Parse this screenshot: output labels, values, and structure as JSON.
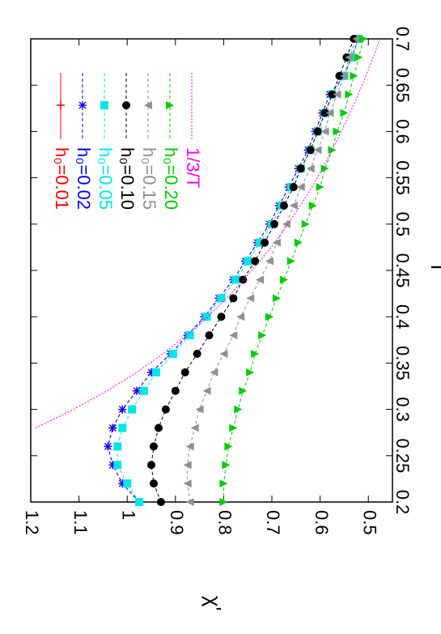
{
  "chart_data": {
    "type": "line",
    "x_label": "T",
    "y_label": "χ'",
    "x": [
      0.2,
      0.22,
      0.24,
      0.26,
      0.28,
      0.3,
      0.32,
      0.34,
      0.36,
      0.38,
      0.4,
      0.42,
      0.44,
      0.46,
      0.48,
      0.5,
      0.52,
      0.54,
      0.56,
      0.58,
      0.6,
      0.62,
      0.64,
      0.66,
      0.68,
      0.7
    ],
    "xlim": [
      0.2,
      0.7
    ],
    "xticks": [
      0.2,
      0.25,
      0.3,
      0.35,
      0.4,
      0.45,
      0.5,
      0.55,
      0.6,
      0.65,
      0.7
    ],
    "ylim": [
      0.45,
      1.2
    ],
    "yticks": [
      0.5,
      0.6,
      0.7,
      0.8,
      0.9,
      1,
      1.1,
      1.2
    ],
    "series": [
      {
        "name": "h₀=0.01",
        "color": "#ff0000",
        "marker": "plus",
        "values": [
          0.975,
          1.01,
          1.03,
          1.04,
          1.03,
          1.01,
          0.98,
          0.95,
          0.91,
          0.875,
          0.84,
          0.81,
          0.78,
          0.755,
          0.73,
          0.705,
          0.685,
          0.665,
          0.645,
          0.625,
          0.61,
          0.595,
          0.58,
          0.55,
          0.535,
          0.52
        ]
      },
      {
        "name": "h₀=0.02",
        "color": "#0000ff",
        "marker": "star",
        "values": [
          0.975,
          1.01,
          1.03,
          1.04,
          1.03,
          1.01,
          0.98,
          0.95,
          0.91,
          0.875,
          0.84,
          0.81,
          0.78,
          0.755,
          0.73,
          0.705,
          0.685,
          0.665,
          0.645,
          0.625,
          0.61,
          0.595,
          0.58,
          0.55,
          0.535,
          0.52
        ]
      },
      {
        "name": "h₀=0.05",
        "color": "#00e5e5",
        "marker": "square",
        "values": [
          0.975,
          1.0,
          1.02,
          1.02,
          1.01,
          0.99,
          0.965,
          0.94,
          0.905,
          0.87,
          0.835,
          0.805,
          0.775,
          0.75,
          0.725,
          0.7,
          0.68,
          0.66,
          0.64,
          0.62,
          0.605,
          0.59,
          0.575,
          0.55,
          0.535,
          0.52
        ]
      },
      {
        "name": "h₀=0.10",
        "color": "#000000",
        "marker": "circle",
        "values": [
          0.93,
          0.945,
          0.95,
          0.945,
          0.935,
          0.92,
          0.9,
          0.88,
          0.855,
          0.83,
          0.805,
          0.78,
          0.76,
          0.735,
          0.715,
          0.695,
          0.675,
          0.655,
          0.64,
          0.62,
          0.605,
          0.59,
          0.575,
          0.56,
          0.545,
          0.53
        ]
      },
      {
        "name": "h₀=0.15",
        "color": "#909090",
        "marker": "triangle",
        "values": [
          0.87,
          0.875,
          0.875,
          0.87,
          0.86,
          0.85,
          0.835,
          0.82,
          0.8,
          0.78,
          0.765,
          0.745,
          0.725,
          0.705,
          0.69,
          0.67,
          0.655,
          0.64,
          0.62,
          0.605,
          0.59,
          0.58,
          0.565,
          0.55,
          0.54,
          0.525
        ]
      },
      {
        "name": "h₀=0.20",
        "color": "#00cc00",
        "marker": "triangle-down",
        "values": [
          0.8,
          0.8,
          0.795,
          0.79,
          0.78,
          0.77,
          0.76,
          0.745,
          0.735,
          0.72,
          0.705,
          0.69,
          0.675,
          0.66,
          0.645,
          0.63,
          0.615,
          0.6,
          0.59,
          0.575,
          0.565,
          0.55,
          0.54,
          0.53,
          0.52,
          0.51
        ]
      },
      {
        "name": "1/3/T",
        "color": "#ff00ff",
        "marker": "none",
        "dotted": true,
        "values": [
          null,
          null,
          null,
          null,
          1.19,
          1.111,
          1.042,
          0.98,
          0.926,
          0.877,
          0.833,
          0.794,
          0.758,
          0.725,
          0.694,
          0.667,
          0.641,
          0.617,
          0.595,
          0.575,
          0.556,
          0.538,
          0.521,
          0.505,
          0.49,
          0.476
        ]
      }
    ]
  }
}
